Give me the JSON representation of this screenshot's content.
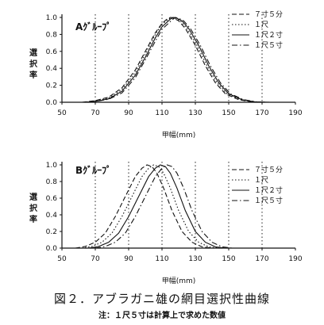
{
  "figure_caption": "図２．アブラガニ雄の網目選択性曲線",
  "figure_note": "注：１尺５寸は計算上で求めた数値",
  "chart_data": [
    {
      "type": "line",
      "group_label": "Aｸﾞﾙｰﾌﾟ",
      "ylabel": "選択率",
      "xlabel": "甲幅(mm)",
      "xlim": [
        50,
        190
      ],
      "ylim": [
        0,
        1.0
      ],
      "x_ticks": [
        "50",
        "70",
        "90",
        "110",
        "130",
        "150",
        "170",
        "190"
      ],
      "y_ticks": [
        "0.0",
        "0.2",
        "0.4",
        "0.6",
        "0.8",
        "1.0"
      ],
      "grid": "vertical dotted lines at x ticks",
      "legend_position": "top-right",
      "series": [
        {
          "name": "７寸５分",
          "style": "dashed",
          "x": [
            62,
            70,
            78,
            86,
            94,
            100,
            106,
            110,
            113,
            115,
            117,
            120,
            124,
            130,
            136,
            142,
            148,
            156,
            164,
            172
          ],
          "y": [
            0.0,
            0.02,
            0.06,
            0.17,
            0.38,
            0.6,
            0.82,
            0.93,
            0.98,
            1.0,
            0.99,
            0.96,
            0.87,
            0.67,
            0.43,
            0.23,
            0.1,
            0.03,
            0.005,
            0.0
          ]
        },
        {
          "name": "１尺",
          "style": "dotted",
          "x": [
            63,
            70,
            78,
            86,
            94,
            100,
            106,
            110,
            114,
            116,
            118,
            121,
            125,
            131,
            137,
            143,
            149,
            157,
            165,
            173
          ],
          "y": [
            0.0,
            0.015,
            0.05,
            0.15,
            0.35,
            0.57,
            0.8,
            0.92,
            0.98,
            1.0,
            0.99,
            0.96,
            0.87,
            0.67,
            0.43,
            0.23,
            0.1,
            0.03,
            0.005,
            0.0
          ]
        },
        {
          "name": "１尺２寸",
          "style": "solid",
          "x": [
            64,
            70,
            78,
            86,
            94,
            100,
            106,
            110,
            115,
            117,
            119,
            122,
            126,
            132,
            138,
            144,
            150,
            158,
            166,
            174
          ],
          "y": [
            0.0,
            0.01,
            0.04,
            0.13,
            0.32,
            0.53,
            0.76,
            0.89,
            0.98,
            1.0,
            0.99,
            0.96,
            0.87,
            0.67,
            0.43,
            0.23,
            0.1,
            0.03,
            0.005,
            0.0
          ]
        },
        {
          "name": "１尺５寸",
          "style": "dash-dot",
          "x": [
            65,
            70,
            78,
            86,
            94,
            100,
            106,
            110,
            116,
            118,
            120,
            123,
            127,
            133,
            139,
            145,
            151,
            159,
            167,
            175
          ],
          "y": [
            0.0,
            0.01,
            0.035,
            0.11,
            0.29,
            0.5,
            0.72,
            0.86,
            0.97,
            1.0,
            0.99,
            0.96,
            0.87,
            0.67,
            0.43,
            0.23,
            0.1,
            0.03,
            0.005,
            0.0
          ]
        }
      ]
    },
    {
      "type": "line",
      "group_label": "Bｸﾞﾙｰﾌﾟ",
      "ylabel": "選択率",
      "xlabel": "甲幅(mm)",
      "xlim": [
        50,
        190
      ],
      "ylim": [
        0,
        1.0
      ],
      "x_ticks": [
        "50",
        "70",
        "90",
        "110",
        "130",
        "150",
        "170",
        "190"
      ],
      "y_ticks": [
        "0.0",
        "0.2",
        "0.4",
        "0.6",
        "0.8",
        "1.0"
      ],
      "grid": "vertical dotted lines at x ticks",
      "legend_position": "top-right",
      "series": [
        {
          "name": "７寸５分",
          "style": "dashed",
          "x": [
            58,
            64,
            70,
            76,
            82,
            88,
            94,
            98,
            101,
            104,
            107,
            111,
            116,
            122,
            128,
            134,
            140
          ],
          "y": [
            0.0,
            0.02,
            0.07,
            0.18,
            0.38,
            0.62,
            0.86,
            0.96,
            1.0,
            0.98,
            0.9,
            0.72,
            0.45,
            0.2,
            0.07,
            0.015,
            0.0
          ]
        },
        {
          "name": "１尺",
          "style": "dotted",
          "x": [
            62,
            68,
            74,
            80,
            86,
            92,
            98,
            102,
            105,
            108,
            111,
            115,
            120,
            126,
            132,
            138,
            144
          ],
          "y": [
            0.0,
            0.02,
            0.07,
            0.18,
            0.38,
            0.62,
            0.86,
            0.96,
            1.0,
            0.98,
            0.9,
            0.72,
            0.45,
            0.2,
            0.07,
            0.015,
            0.0
          ]
        },
        {
          "name": "１尺２寸",
          "style": "solid",
          "x": [
            66,
            72,
            78,
            84,
            90,
            96,
            102,
            106,
            109,
            112,
            115,
            119,
            124,
            130,
            136,
            142,
            148
          ],
          "y": [
            0.0,
            0.02,
            0.07,
            0.18,
            0.38,
            0.62,
            0.86,
            0.96,
            1.0,
            0.98,
            0.9,
            0.72,
            0.45,
            0.2,
            0.07,
            0.015,
            0.0
          ]
        },
        {
          "name": "１尺５寸",
          "style": "dash-dot",
          "x": [
            70,
            76,
            82,
            88,
            94,
            100,
            106,
            110,
            113,
            116,
            119,
            123,
            128,
            134,
            140,
            146,
            152
          ],
          "y": [
            0.0,
            0.02,
            0.07,
            0.18,
            0.38,
            0.62,
            0.86,
            0.96,
            1.0,
            0.98,
            0.9,
            0.72,
            0.45,
            0.2,
            0.07,
            0.015,
            0.0
          ]
        }
      ]
    }
  ]
}
